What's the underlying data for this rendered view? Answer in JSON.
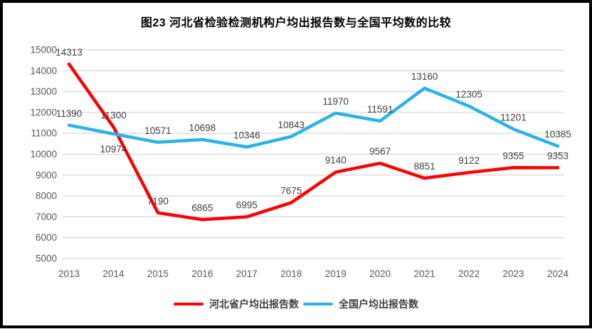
{
  "chart_data": {
    "type": "line",
    "title": "图23  河北省检验检测机构户均出报告数与全国平均数的比较",
    "categories": [
      "2013",
      "2014",
      "2015",
      "2016",
      "2017",
      "2018",
      "2019",
      "2020",
      "2021",
      "2022",
      "2023",
      "2024"
    ],
    "series": [
      {
        "name": "河北省户均出报告数",
        "color": "#FE0000",
        "values": [
          14313,
          11300,
          7190,
          6865,
          6995,
          7675,
          9140,
          9567,
          8851,
          9122,
          9355,
          9353
        ],
        "labels_below_indices": []
      },
      {
        "name": "全国户均出报告数",
        "color": "#2BB3E8",
        "values": [
          11390,
          10974,
          10571,
          10698,
          10346,
          10843,
          11970,
          11591,
          13160,
          12305,
          11201,
          10385
        ],
        "labels_below_indices": [
          1
        ]
      }
    ],
    "ylim": [
      5000,
      15000
    ],
    "ytick_step": 1000,
    "yticks": [
      5000,
      6000,
      7000,
      8000,
      9000,
      10000,
      11000,
      12000,
      13000,
      14000,
      15000
    ],
    "grid": true,
    "legend_position": "bottom",
    "xlabel": "",
    "ylabel": "",
    "colors": {
      "gridline": "#D9D9D9",
      "axis_text": "#595959",
      "data_label": "#404040",
      "title_text": "#000000",
      "frame_border": "#000000",
      "background": "#FFFFFF"
    }
  }
}
